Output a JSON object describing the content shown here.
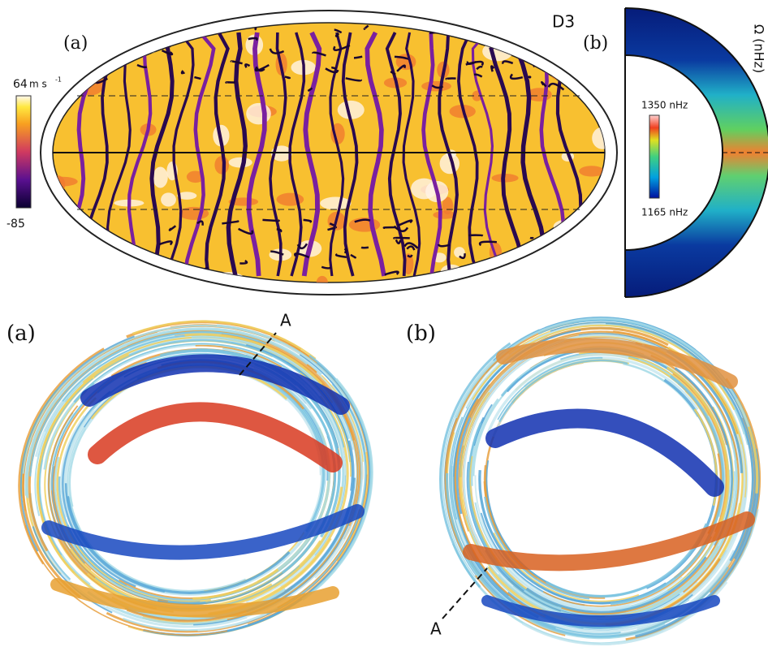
{
  "top": {
    "panel_a": {
      "label": "(a)",
      "colorbar": {
        "max_label": "64",
        "unit": "m s",
        "unit_exponent": "-1",
        "min_label": "-85"
      }
    },
    "panel_b": {
      "label": "(b)",
      "case": "D3",
      "axis_label": "Ω (nHz)",
      "colorbar": {
        "max_label": "1350 nHz",
        "min_label": "1165 nHz"
      }
    }
  },
  "bottom": {
    "panel_a": {
      "label": "(a)",
      "marker": "A"
    },
    "panel_b": {
      "label": "(b)",
      "marker": "A"
    }
  }
}
